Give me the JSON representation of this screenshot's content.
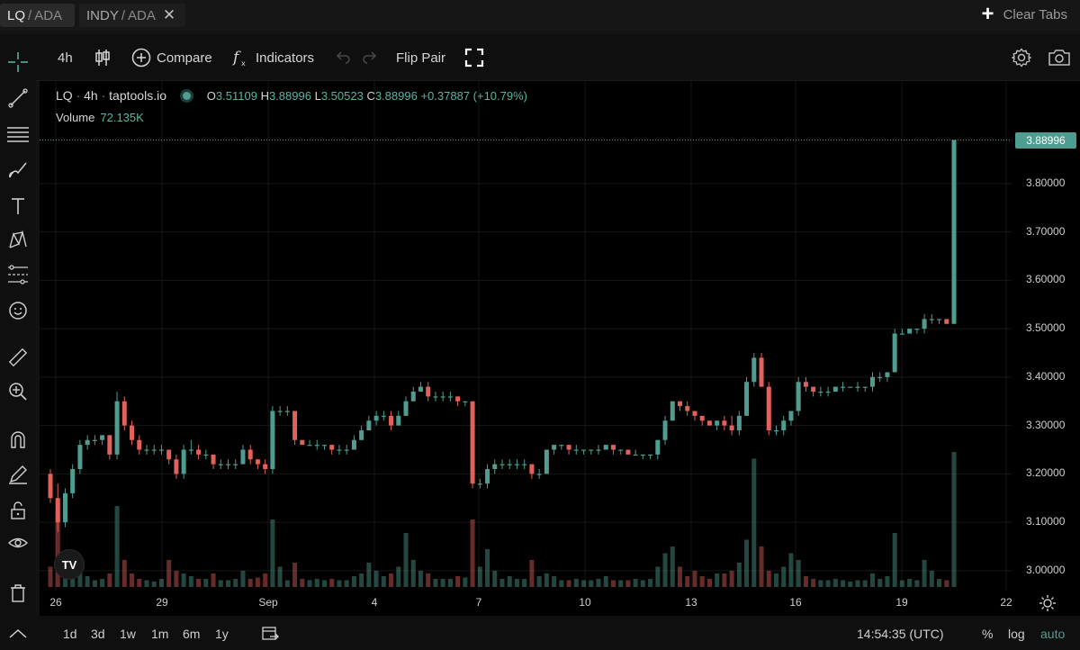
{
  "tabs": [
    {
      "pair_a": "LQ",
      "sep": "/",
      "pair_b": "ADA"
    },
    {
      "pair_a": "INDY",
      "sep": "/",
      "pair_b": "ADA"
    }
  ],
  "clear_tabs_label": "Clear Tabs",
  "toolbar": {
    "interval": "4h",
    "compare_label": "Compare",
    "indicators_label": "Indicators",
    "flip_pair_label": "Flip Pair"
  },
  "legend": {
    "symbol": "LQ",
    "interval": "4h",
    "source": "taptools.io",
    "open_label": "O",
    "open": "3.51109",
    "high_label": "H",
    "high": "3.88996",
    "low_label": "L",
    "low": "3.50523",
    "close_label": "C",
    "close": "3.88996",
    "change": "+0.37887 (+10.79%)",
    "volume_label": "Volume",
    "volume": "72.135K"
  },
  "last_price": "3.88996",
  "price_ticks": [
    "3.80000",
    "3.70000",
    "3.60000",
    "3.50000",
    "3.40000",
    "3.30000",
    "3.20000",
    "3.10000",
    "3.00000"
  ],
  "time_labels": [
    "26",
    "29",
    "Sep",
    "4",
    "7",
    "10",
    "13",
    "16",
    "19",
    "22"
  ],
  "bottom": {
    "ranges": [
      "1d",
      "3d",
      "1w",
      "1m",
      "6m",
      "1y"
    ],
    "clock": "14:54:35 (UTC)",
    "percent": "%",
    "log": "log",
    "auto": "auto"
  },
  "colors": {
    "up": "#4e9d90",
    "down": "#e0625a"
  },
  "chart_data": {
    "type": "candlestick",
    "ylim": [
      2.97,
      3.93
    ],
    "x_labels": [
      "26",
      "29",
      "Sep",
      "4",
      "7",
      "10",
      "13",
      "16",
      "19",
      "22"
    ],
    "ohlc": [
      [
        3.2,
        3.21,
        3.14,
        3.15
      ],
      [
        3.15,
        3.18,
        3.08,
        3.1
      ],
      [
        3.1,
        3.17,
        3.09,
        3.16
      ],
      [
        3.16,
        3.22,
        3.15,
        3.21
      ],
      [
        3.21,
        3.27,
        3.2,
        3.26
      ],
      [
        3.26,
        3.28,
        3.25,
        3.27
      ],
      [
        3.27,
        3.28,
        3.26,
        3.27
      ],
      [
        3.27,
        3.28,
        3.26,
        3.28
      ],
      [
        3.28,
        3.28,
        3.23,
        3.24
      ],
      [
        3.24,
        3.37,
        3.23,
        3.35
      ],
      [
        3.35,
        3.36,
        3.29,
        3.3
      ],
      [
        3.3,
        3.31,
        3.26,
        3.27
      ],
      [
        3.27,
        3.28,
        3.24,
        3.25
      ],
      [
        3.25,
        3.26,
        3.24,
        3.25
      ],
      [
        3.25,
        3.26,
        3.24,
        3.25
      ],
      [
        3.25,
        3.26,
        3.24,
        3.25
      ],
      [
        3.25,
        3.25,
        3.22,
        3.23
      ],
      [
        3.23,
        3.24,
        3.19,
        3.2
      ],
      [
        3.2,
        3.26,
        3.19,
        3.25
      ],
      [
        3.25,
        3.27,
        3.24,
        3.25
      ],
      [
        3.25,
        3.26,
        3.23,
        3.24
      ],
      [
        3.24,
        3.25,
        3.23,
        3.24
      ],
      [
        3.24,
        3.24,
        3.21,
        3.22
      ],
      [
        3.22,
        3.23,
        3.21,
        3.22
      ],
      [
        3.22,
        3.23,
        3.21,
        3.22
      ],
      [
        3.22,
        3.23,
        3.21,
        3.22
      ],
      [
        3.22,
        3.26,
        3.22,
        3.25
      ],
      [
        3.25,
        3.26,
        3.22,
        3.23
      ],
      [
        3.23,
        3.23,
        3.21,
        3.22
      ],
      [
        3.22,
        3.23,
        3.2,
        3.21
      ],
      [
        3.21,
        3.34,
        3.2,
        3.33
      ],
      [
        3.33,
        3.34,
        3.32,
        3.33
      ],
      [
        3.33,
        3.34,
        3.32,
        3.33
      ],
      [
        3.33,
        3.33,
        3.26,
        3.27
      ],
      [
        3.27,
        3.27,
        3.26,
        3.26
      ],
      [
        3.26,
        3.27,
        3.26,
        3.26
      ],
      [
        3.26,
        3.27,
        3.25,
        3.26
      ],
      [
        3.26,
        3.26,
        3.25,
        3.26
      ],
      [
        3.26,
        3.26,
        3.24,
        3.25
      ],
      [
        3.25,
        3.26,
        3.24,
        3.25
      ],
      [
        3.25,
        3.26,
        3.24,
        3.25
      ],
      [
        3.25,
        3.28,
        3.25,
        3.27
      ],
      [
        3.27,
        3.3,
        3.27,
        3.29
      ],
      [
        3.29,
        3.32,
        3.29,
        3.31
      ],
      [
        3.31,
        3.33,
        3.3,
        3.32
      ],
      [
        3.32,
        3.33,
        3.31,
        3.32
      ],
      [
        3.32,
        3.33,
        3.29,
        3.3
      ],
      [
        3.3,
        3.33,
        3.3,
        3.32
      ],
      [
        3.32,
        3.36,
        3.32,
        3.35
      ],
      [
        3.35,
        3.38,
        3.35,
        3.37
      ],
      [
        3.37,
        3.39,
        3.37,
        3.38
      ],
      [
        3.38,
        3.39,
        3.35,
        3.36
      ],
      [
        3.36,
        3.37,
        3.35,
        3.36
      ],
      [
        3.36,
        3.37,
        3.35,
        3.36
      ],
      [
        3.36,
        3.37,
        3.35,
        3.36
      ],
      [
        3.36,
        3.36,
        3.34,
        3.35
      ],
      [
        3.35,
        3.35,
        3.34,
        3.35
      ],
      [
        3.35,
        3.35,
        3.17,
        3.18
      ],
      [
        3.18,
        3.19,
        3.17,
        3.18
      ],
      [
        3.18,
        3.22,
        3.17,
        3.21
      ],
      [
        3.21,
        3.23,
        3.2,
        3.22
      ],
      [
        3.22,
        3.23,
        3.21,
        3.22
      ],
      [
        3.22,
        3.23,
        3.21,
        3.22
      ],
      [
        3.22,
        3.23,
        3.21,
        3.22
      ],
      [
        3.22,
        3.23,
        3.21,
        3.22
      ],
      [
        3.22,
        3.22,
        3.19,
        3.2
      ],
      [
        3.2,
        3.21,
        3.19,
        3.2
      ],
      [
        3.2,
        3.25,
        3.2,
        3.25
      ],
      [
        3.25,
        3.26,
        3.24,
        3.26
      ],
      [
        3.26,
        3.26,
        3.25,
        3.26
      ],
      [
        3.26,
        3.26,
        3.24,
        3.25
      ],
      [
        3.25,
        3.26,
        3.24,
        3.25
      ],
      [
        3.25,
        3.25,
        3.24,
        3.25
      ],
      [
        3.25,
        3.25,
        3.24,
        3.25
      ],
      [
        3.25,
        3.26,
        3.24,
        3.25
      ],
      [
        3.25,
        3.26,
        3.25,
        3.26
      ],
      [
        3.26,
        3.26,
        3.24,
        3.25
      ],
      [
        3.25,
        3.25,
        3.24,
        3.25
      ],
      [
        3.25,
        3.25,
        3.24,
        3.24
      ],
      [
        3.24,
        3.25,
        3.24,
        3.24
      ],
      [
        3.24,
        3.24,
        3.23,
        3.24
      ],
      [
        3.24,
        3.24,
        3.23,
        3.24
      ],
      [
        3.24,
        3.27,
        3.23,
        3.27
      ],
      [
        3.27,
        3.32,
        3.26,
        3.31
      ],
      [
        3.31,
        3.35,
        3.31,
        3.35
      ],
      [
        3.35,
        3.35,
        3.33,
        3.34
      ],
      [
        3.34,
        3.35,
        3.32,
        3.33
      ],
      [
        3.33,
        3.33,
        3.31,
        3.32
      ],
      [
        3.32,
        3.32,
        3.3,
        3.31
      ],
      [
        3.31,
        3.31,
        3.3,
        3.3
      ],
      [
        3.3,
        3.31,
        3.29,
        3.31
      ],
      [
        3.31,
        3.32,
        3.29,
        3.3
      ],
      [
        3.3,
        3.32,
        3.28,
        3.29
      ],
      [
        3.29,
        3.33,
        3.28,
        3.32
      ],
      [
        3.32,
        3.4,
        3.32,
        3.39
      ],
      [
        3.39,
        3.45,
        3.38,
        3.44
      ],
      [
        3.44,
        3.45,
        3.38,
        3.38
      ],
      [
        3.38,
        3.39,
        3.28,
        3.29
      ],
      [
        3.29,
        3.3,
        3.28,
        3.29
      ],
      [
        3.29,
        3.32,
        3.28,
        3.31
      ],
      [
        3.31,
        3.33,
        3.3,
        3.33
      ],
      [
        3.33,
        3.4,
        3.32,
        3.39
      ],
      [
        3.39,
        3.4,
        3.37,
        3.38
      ],
      [
        3.38,
        3.38,
        3.36,
        3.37
      ],
      [
        3.37,
        3.38,
        3.36,
        3.37
      ],
      [
        3.37,
        3.38,
        3.36,
        3.37
      ],
      [
        3.37,
        3.38,
        3.37,
        3.38
      ],
      [
        3.38,
        3.39,
        3.37,
        3.38
      ],
      [
        3.38,
        3.38,
        3.38,
        3.38
      ],
      [
        3.38,
        3.39,
        3.37,
        3.38
      ],
      [
        3.38,
        3.38,
        3.37,
        3.38
      ],
      [
        3.38,
        3.41,
        3.37,
        3.4
      ],
      [
        3.4,
        3.41,
        3.39,
        3.4
      ],
      [
        3.4,
        3.41,
        3.39,
        3.41
      ],
      [
        3.41,
        3.5,
        3.41,
        3.49
      ],
      [
        3.49,
        3.5,
        3.49,
        3.49
      ],
      [
        3.49,
        3.5,
        3.49,
        3.5
      ],
      [
        3.5,
        3.5,
        3.49,
        3.5
      ],
      [
        3.5,
        3.53,
        3.49,
        3.52
      ],
      [
        3.52,
        3.53,
        3.51,
        3.52
      ],
      [
        3.52,
        3.52,
        3.51,
        3.52
      ],
      [
        3.52,
        3.52,
        3.51,
        3.51
      ],
      [
        3.51,
        3.89,
        3.51,
        3.89
      ]
    ],
    "volume_rel": [
      0.15,
      0.55,
      0.25,
      0.1,
      0.12,
      0.08,
      0.05,
      0.06,
      0.1,
      0.6,
      0.2,
      0.1,
      0.06,
      0.05,
      0.04,
      0.06,
      0.2,
      0.12,
      0.1,
      0.08,
      0.06,
      0.06,
      0.1,
      0.05,
      0.05,
      0.06,
      0.12,
      0.06,
      0.07,
      0.1,
      0.5,
      0.15,
      0.05,
      0.18,
      0.06,
      0.05,
      0.06,
      0.05,
      0.06,
      0.05,
      0.05,
      0.08,
      0.1,
      0.18,
      0.12,
      0.08,
      0.1,
      0.15,
      0.4,
      0.2,
      0.12,
      0.1,
      0.06,
      0.06,
      0.06,
      0.08,
      0.07,
      0.5,
      0.15,
      0.28,
      0.12,
      0.06,
      0.08,
      0.06,
      0.06,
      0.2,
      0.08,
      0.1,
      0.08,
      0.05,
      0.05,
      0.06,
      0.05,
      0.05,
      0.06,
      0.08,
      0.05,
      0.05,
      0.05,
      0.06,
      0.05,
      0.06,
      0.15,
      0.25,
      0.3,
      0.15,
      0.08,
      0.12,
      0.08,
      0.06,
      0.1,
      0.1,
      0.12,
      0.18,
      0.35,
      0.95,
      0.3,
      0.12,
      0.1,
      0.15,
      0.25,
      0.2,
      0.08,
      0.06,
      0.05,
      0.05,
      0.06,
      0.05,
      0.04,
      0.05,
      0.05,
      0.1,
      0.06,
      0.08,
      0.4,
      0.05,
      0.06,
      0.05,
      0.2,
      0.12,
      0.06,
      0.05,
      1.0
    ]
  }
}
